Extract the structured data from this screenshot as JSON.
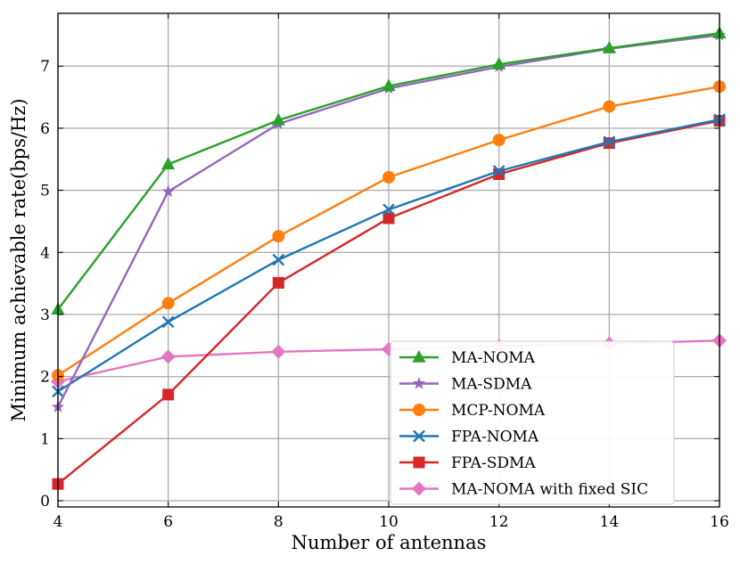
{
  "chart_data": {
    "type": "line",
    "xlabel": "Number of antennas",
    "ylabel": "Minimum achievable rate(bps/Hz)",
    "x": [
      4,
      6,
      8,
      10,
      12,
      14,
      16
    ],
    "xlim": [
      4,
      16
    ],
    "ylim": [
      -0.1,
      7.85
    ],
    "xticks": [
      "4",
      "6",
      "8",
      "10",
      "12",
      "14",
      "16"
    ],
    "yticks": [
      "0",
      "1",
      "2",
      "3",
      "4",
      "5",
      "6",
      "7"
    ],
    "grid": true,
    "legend_position": "lower-right",
    "series": [
      {
        "name": "MA-NOMA",
        "color": "#2ca02c",
        "marker": "triangle",
        "values": [
          3.08,
          5.42,
          6.13,
          6.68,
          7.03,
          7.29,
          7.53
        ]
      },
      {
        "name": "MA-SDMA",
        "color": "#9467bd",
        "marker": "star",
        "values": [
          1.51,
          4.98,
          6.07,
          6.64,
          6.99,
          7.28,
          7.5
        ]
      },
      {
        "name": "MCP-NOMA",
        "color": "#ff7f0e",
        "marker": "circle",
        "values": [
          2.02,
          3.18,
          4.26,
          5.21,
          5.81,
          6.35,
          6.67
        ]
      },
      {
        "name": "FPA-NOMA",
        "color": "#1f77b4",
        "marker": "x",
        "values": [
          1.76,
          2.88,
          3.88,
          4.69,
          5.31,
          5.78,
          6.14
        ]
      },
      {
        "name": "FPA-SDMA",
        "color": "#d62728",
        "marker": "square",
        "values": [
          0.27,
          1.71,
          3.51,
          4.55,
          5.26,
          5.76,
          6.12
        ]
      },
      {
        "name": "MA-NOMA with fixed SIC",
        "color": "#e377c2",
        "marker": "diamond",
        "values": [
          1.92,
          2.32,
          2.4,
          2.44,
          2.49,
          2.53,
          2.58
        ]
      }
    ]
  }
}
